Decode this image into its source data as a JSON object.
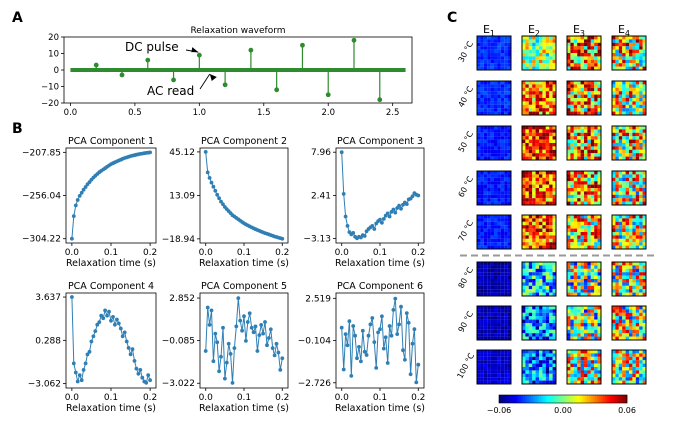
{
  "panel_labels": [
    "A",
    "B",
    "C"
  ],
  "chart_data": [
    {
      "id": "A",
      "type": "line",
      "title": "Relaxation waveform",
      "xlabel": "",
      "ylabel": "",
      "xlim": [
        -0.05,
        2.65
      ],
      "ylim": [
        -20,
        20
      ],
      "xticks": [
        0.0,
        0.5,
        1.0,
        1.5,
        2.0,
        2.5
      ],
      "yticks": [
        -20,
        -10,
        0,
        10,
        20
      ],
      "xtick_labels": [
        "0.0",
        "0.5",
        "1.0",
        "1.5",
        "2.0",
        "2.5"
      ],
      "ytick_labels": [
        "−20",
        "−10",
        "0",
        "10",
        "20"
      ],
      "color": "#2e8b2e",
      "baseline": 0,
      "pulses": [
        {
          "t": 0.2,
          "v": 3
        },
        {
          "t": 0.4,
          "v": -3
        },
        {
          "t": 0.6,
          "v": 6
        },
        {
          "t": 0.8,
          "v": -6
        },
        {
          "t": 1.0,
          "v": 9
        },
        {
          "t": 1.2,
          "v": -9
        },
        {
          "t": 1.4,
          "v": 12
        },
        {
          "t": 1.6,
          "v": -12
        },
        {
          "t": 1.8,
          "v": 15
        },
        {
          "t": 2.0,
          "v": -15
        },
        {
          "t": 2.2,
          "v": 18
        },
        {
          "t": 2.4,
          "v": -18
        }
      ],
      "annotations": [
        {
          "text": "DC pulse",
          "target_t": 1.0,
          "target_v": 9
        },
        {
          "text": "AC read",
          "target_t": 1.05,
          "target_v": 0
        }
      ]
    },
    {
      "id": "B1",
      "type": "line",
      "title": "PCA Component 1",
      "xlabel": "Relaxation time (s)",
      "xlim": [
        -0.015,
        0.215
      ],
      "xticks": [
        0.0,
        0.1,
        0.2
      ],
      "xtick_labels": [
        "0.0",
        "0.1",
        "0.2"
      ],
      "yticks": [
        -304.22,
        -256.04,
        -207.85
      ],
      "ytick_labels": [
        "−304.22",
        "−256.04",
        "−207.85"
      ],
      "ylim": [
        -309,
        -203
      ],
      "color": "#2f7fb5",
      "x": [
        0.0,
        0.005,
        0.01,
        0.015,
        0.02,
        0.025,
        0.03,
        0.035,
        0.04,
        0.045,
        0.05,
        0.055,
        0.06,
        0.065,
        0.07,
        0.075,
        0.08,
        0.085,
        0.09,
        0.095,
        0.1,
        0.105,
        0.11,
        0.115,
        0.12,
        0.125,
        0.13,
        0.135,
        0.14,
        0.145,
        0.15,
        0.155,
        0.16,
        0.165,
        0.17,
        0.175,
        0.18,
        0.185,
        0.19,
        0.195,
        0.2
      ],
      "y": [
        -304.2,
        -279.0,
        -267.0,
        -261.0,
        -256.5,
        -253.0,
        -249.5,
        -246.5,
        -243.5,
        -241.0,
        -238.5,
        -236.0,
        -234.0,
        -232.0,
        -230.0,
        -228.5,
        -227.0,
        -225.5,
        -224.0,
        -222.5,
        -221.0,
        -220.0,
        -219.0,
        -218.0,
        -217.0,
        -216.0,
        -215.0,
        -214.2,
        -213.5,
        -212.8,
        -212.0,
        -211.5,
        -211.0,
        -210.5,
        -210.0,
        -209.6,
        -209.2,
        -208.8,
        -208.5,
        -208.2,
        -207.9
      ]
    },
    {
      "id": "B2",
      "type": "line",
      "title": "PCA Component 2",
      "xlabel": "Relaxation time (s)",
      "xlim": [
        -0.015,
        0.215
      ],
      "xticks": [
        0.0,
        0.1,
        0.2
      ],
      "xtick_labels": [
        "0.0",
        "0.1",
        "0.2"
      ],
      "yticks": [
        -18.94,
        13.09,
        45.12
      ],
      "ytick_labels": [
        "−18.94",
        "13.09",
        "45.12"
      ],
      "ylim": [
        -22,
        48
      ],
      "color": "#2f7fb5",
      "x": [
        0.0,
        0.005,
        0.01,
        0.015,
        0.02,
        0.025,
        0.03,
        0.035,
        0.04,
        0.045,
        0.05,
        0.055,
        0.06,
        0.065,
        0.07,
        0.075,
        0.08,
        0.085,
        0.09,
        0.095,
        0.1,
        0.105,
        0.11,
        0.115,
        0.12,
        0.125,
        0.13,
        0.135,
        0.14,
        0.145,
        0.15,
        0.155,
        0.16,
        0.165,
        0.17,
        0.175,
        0.18,
        0.185,
        0.19,
        0.195,
        0.2
      ],
      "y": [
        45.1,
        30.0,
        26.0,
        22.5,
        19.5,
        16.5,
        13.5,
        11.0,
        8.5,
        6.5,
        4.5,
        3.0,
        1.5,
        0.0,
        -1.5,
        -2.5,
        -3.5,
        -4.5,
        -5.5,
        -6.5,
        -7.5,
        -8.3,
        -9.0,
        -9.8,
        -10.5,
        -11.2,
        -11.8,
        -12.4,
        -13.0,
        -13.6,
        -14.2,
        -14.7,
        -15.2,
        -15.7,
        -16.2,
        -16.7,
        -17.2,
        -17.6,
        -18.0,
        -18.4,
        -18.9
      ]
    },
    {
      "id": "B3",
      "type": "line",
      "title": "PCA Component 3",
      "xlabel": "Relaxation time (s)",
      "xlim": [
        -0.015,
        0.215
      ],
      "xticks": [
        0.0,
        0.1,
        0.2
      ],
      "xtick_labels": [
        "0.0",
        "0.1",
        "0.2"
      ],
      "yticks": [
        -3.13,
        2.41,
        7.96
      ],
      "ytick_labels": [
        "−3.13",
        "2.41",
        "7.96"
      ],
      "ylim": [
        -3.7,
        8.5
      ],
      "color": "#2f7fb5",
      "x": [
        0.0,
        0.005,
        0.01,
        0.015,
        0.02,
        0.025,
        0.03,
        0.035,
        0.04,
        0.045,
        0.05,
        0.055,
        0.06,
        0.065,
        0.07,
        0.075,
        0.08,
        0.085,
        0.09,
        0.095,
        0.1,
        0.105,
        0.11,
        0.115,
        0.12,
        0.125,
        0.13,
        0.135,
        0.14,
        0.145,
        0.15,
        0.155,
        0.16,
        0.165,
        0.17,
        0.175,
        0.18,
        0.185,
        0.19,
        0.195,
        0.2
      ],
      "y": [
        7.96,
        2.6,
        -0.3,
        -1.5,
        -2.3,
        -2.6,
        -2.4,
        -2.9,
        -3.1,
        -2.9,
        -3.0,
        -2.7,
        -2.8,
        -2.2,
        -1.9,
        -1.7,
        -1.5,
        -1.9,
        -1.2,
        -0.9,
        -0.7,
        -1.1,
        -0.6,
        -0.2,
        0.1,
        -0.3,
        0.3,
        0.6,
        0.2,
        0.8,
        1.1,
        0.7,
        1.2,
        1.5,
        1.3,
        1.9,
        2.0,
        2.3,
        2.7,
        2.5,
        2.4
      ]
    },
    {
      "id": "B4",
      "type": "line",
      "title": "PCA Component 4",
      "xlabel": "Relaxation time (s)",
      "xlim": [
        -0.015,
        0.215
      ],
      "xticks": [
        0.0,
        0.1,
        0.2
      ],
      "xtick_labels": [
        "0.0",
        "0.1",
        "0.2"
      ],
      "yticks": [
        -3.062,
        0.288,
        3.637
      ],
      "ytick_labels": [
        "−3.062",
        "0.288",
        "3.637"
      ],
      "ylim": [
        -3.4,
        3.95
      ],
      "color": "#2f7fb5",
      "x": [
        0.0,
        0.005,
        0.01,
        0.015,
        0.02,
        0.025,
        0.03,
        0.035,
        0.04,
        0.045,
        0.05,
        0.055,
        0.06,
        0.065,
        0.07,
        0.075,
        0.08,
        0.085,
        0.09,
        0.095,
        0.1,
        0.105,
        0.11,
        0.115,
        0.12,
        0.125,
        0.13,
        0.135,
        0.14,
        0.145,
        0.15,
        0.155,
        0.16,
        0.165,
        0.17,
        0.175,
        0.18,
        0.185,
        0.19,
        0.195,
        0.2
      ],
      "y": [
        3.637,
        -1.5,
        -2.2,
        -2.9,
        -2.4,
        -2.8,
        -2.0,
        -1.5,
        -0.8,
        -0.6,
        0.2,
        0.6,
        1.0,
        1.5,
        1.7,
        2.2,
        2.0,
        2.6,
        2.2,
        2.5,
        1.8,
        2.1,
        1.5,
        1.9,
        1.6,
        1.2,
        0.6,
        0.9,
        0.2,
        -0.3,
        -0.8,
        -0.4,
        -1.3,
        -1.9,
        -2.3,
        -2.0,
        -2.6,
        -2.9,
        -3.0,
        -2.4,
        -2.8
      ]
    },
    {
      "id": "B5",
      "type": "line",
      "title": "PCA Component 5",
      "xlabel": "Relaxation time (s)",
      "xlim": [
        -0.015,
        0.215
      ],
      "xticks": [
        0.0,
        0.1,
        0.2
      ],
      "xtick_labels": [
        "0.0",
        "0.1",
        "0.2"
      ],
      "yticks": [
        -3.022,
        -0.085,
        2.852
      ],
      "ytick_labels": [
        "−3.022",
        "−0.085",
        "2.852"
      ],
      "ylim": [
        -3.35,
        3.2
      ],
      "color": "#2f7fb5",
      "x": [
        0.0,
        0.005,
        0.01,
        0.015,
        0.02,
        0.025,
        0.03,
        0.035,
        0.04,
        0.045,
        0.05,
        0.055,
        0.06,
        0.065,
        0.07,
        0.075,
        0.08,
        0.085,
        0.09,
        0.095,
        0.1,
        0.105,
        0.11,
        0.115,
        0.12,
        0.125,
        0.13,
        0.135,
        0.14,
        0.145,
        0.15,
        0.155,
        0.16,
        0.165,
        0.17,
        0.175,
        0.18,
        0.185,
        0.19,
        0.195,
        0.2
      ],
      "y": [
        -0.8,
        2.2,
        1.0,
        2.0,
        -1.5,
        0.4,
        -0.2,
        -2.2,
        -1.2,
        0.8,
        -2.7,
        -1.6,
        -0.3,
        -1.0,
        -3.0,
        -0.6,
        0.9,
        2.85,
        1.3,
        0.6,
        1.6,
        -0.1,
        1.2,
        1.8,
        0.8,
        0.5,
        0.9,
        -0.8,
        0.3,
        1.0,
        0.4,
        1.2,
        -0.4,
        0.1,
        0.7,
        -0.6,
        -1.1,
        -0.3,
        -0.9,
        -2.1,
        -1.3
      ]
    },
    {
      "id": "B6",
      "type": "line",
      "title": "PCA Component 6",
      "xlabel": "Relaxation time (s)",
      "xlim": [
        -0.015,
        0.215
      ],
      "xticks": [
        0.0,
        0.1,
        0.2
      ],
      "xtick_labels": [
        "0.0",
        "0.1",
        "0.2"
      ],
      "yticks": [
        -2.726,
        -0.104,
        2.519
      ],
      "ytick_labels": [
        "−2.726",
        "−0.104",
        "2.519"
      ],
      "ylim": [
        -3.05,
        2.85
      ],
      "color": "#2f7fb5",
      "x": [
        0.0,
        0.005,
        0.01,
        0.015,
        0.02,
        0.025,
        0.03,
        0.035,
        0.04,
        0.045,
        0.05,
        0.055,
        0.06,
        0.065,
        0.07,
        0.075,
        0.08,
        0.085,
        0.09,
        0.095,
        0.1,
        0.105,
        0.11,
        0.115,
        0.12,
        0.125,
        0.13,
        0.135,
        0.14,
        0.145,
        0.15,
        0.155,
        0.16,
        0.165,
        0.17,
        0.175,
        0.18,
        0.185,
        0.19,
        0.195,
        0.2
      ],
      "y": [
        0.7,
        -1.9,
        0.3,
        -0.4,
        1.1,
        -2.3,
        0.8,
        0.2,
        -1.2,
        -0.5,
        -1.4,
        0.5,
        -0.8,
        -1.0,
        0.2,
        0.9,
        1.3,
        -0.2,
        -1.8,
        0.4,
        0.6,
        1.4,
        -0.6,
        0.1,
        -1.5,
        0.8,
        0.2,
        1.8,
        2.5,
        0.3,
        0.9,
        2.0,
        -0.7,
        -1.3,
        1.6,
        1.0,
        -2.2,
        -0.3,
        0.6,
        -2.7,
        -1.6
      ]
    },
    {
      "id": "C",
      "type": "heatmap",
      "columns": [
        {
          "base": "E",
          "sub": "1"
        },
        {
          "base": "E",
          "sub": "2"
        },
        {
          "base": "E",
          "sub": "3"
        },
        {
          "base": "E",
          "sub": "4"
        }
      ],
      "rows": [
        "30 °C",
        "40 °C",
        "50 °C",
        "60 °C",
        "70 °C",
        "80 °C",
        "90 °C",
        "100 °C"
      ],
      "divider_after_row": 5,
      "grid_size": 10,
      "colormap": "jet",
      "colorbar": {
        "min": -0.06,
        "max": 0.06,
        "ticks": [
          -0.06,
          0.0,
          0.06
        ],
        "tick_labels": [
          "−0.06",
          "0.00",
          "0.06"
        ]
      },
      "mean_values": [
        [
          -0.04,
          0.005,
          0.025,
          0.015
        ],
        [
          -0.04,
          0.03,
          0.02,
          0.015
        ],
        [
          -0.042,
          0.04,
          0.022,
          0.015
        ],
        [
          -0.042,
          0.035,
          0.022,
          0.01
        ],
        [
          -0.042,
          0.035,
          0.015,
          0.01
        ],
        [
          -0.054,
          -0.02,
          0.0,
          0.005
        ],
        [
          -0.054,
          -0.03,
          0.0,
          0.005
        ],
        [
          -0.05,
          -0.03,
          0.01,
          0.005
        ]
      ],
      "spread": [
        0.006,
        0.03,
        0.045,
        0.045
      ]
    }
  ]
}
